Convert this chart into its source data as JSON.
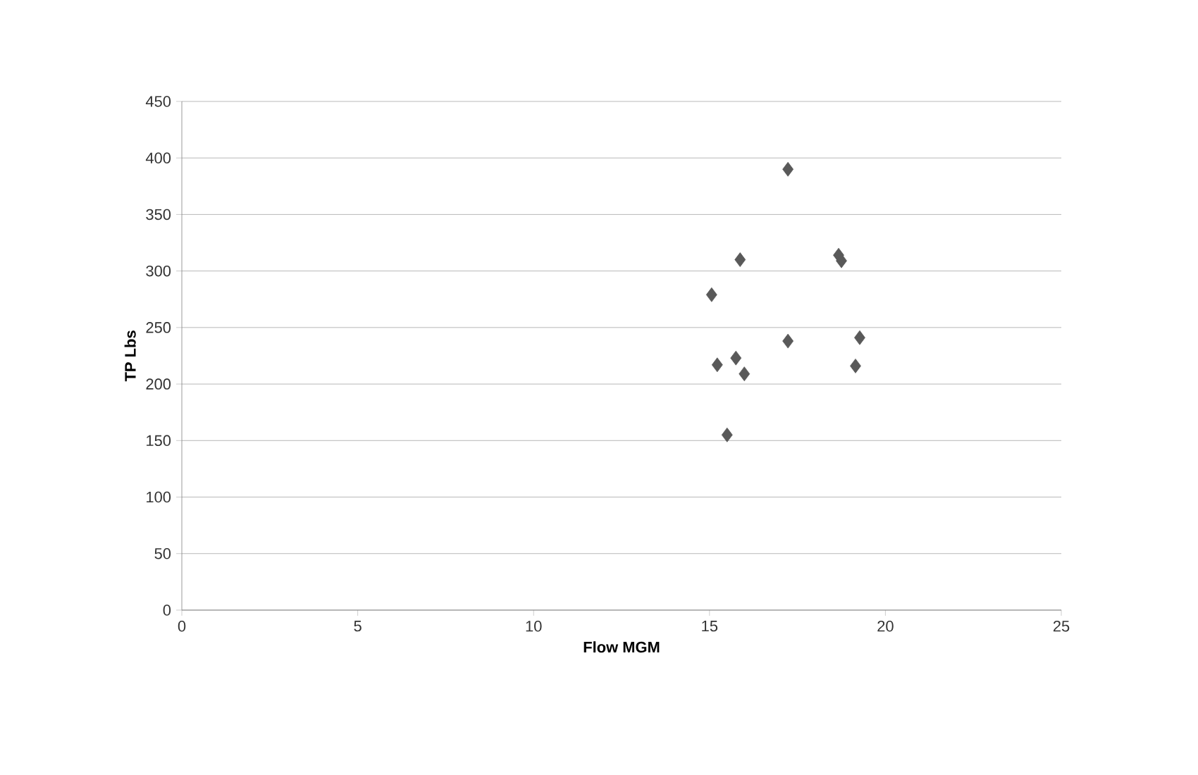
{
  "chart_data": {
    "type": "scatter",
    "xlabel": "Flow MGM",
    "ylabel": "TP Lbs",
    "x": [
      15.06,
      15.22,
      15.5,
      15.75,
      15.87,
      15.99,
      17.23,
      17.23,
      18.67,
      18.75,
      19.27,
      19.15
    ],
    "values": [
      279,
      217,
      155,
      223,
      310,
      209,
      390,
      238,
      314,
      309,
      241,
      216
    ],
    "color": "#595959",
    "marker": "diamond",
    "xlim": [
      0,
      25
    ],
    "xticks": [
      0,
      5,
      10,
      15,
      20,
      25
    ],
    "ylim": [
      0,
      450
    ],
    "yticks": [
      0,
      50,
      100,
      150,
      200,
      250,
      300,
      350,
      400,
      450
    ],
    "grid": "y"
  }
}
